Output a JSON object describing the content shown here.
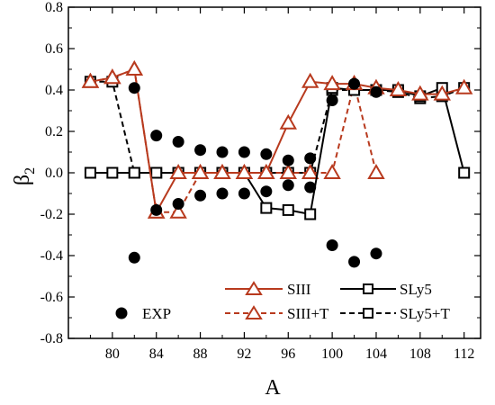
{
  "chart_data": {
    "type": "line",
    "xlabel": "A",
    "ylabel": "β",
    "ylabel_sub": "2",
    "xlim": [
      76,
      113.5
    ],
    "ylim": [
      -0.8,
      0.8
    ],
    "xticks": [
      80,
      84,
      88,
      92,
      96,
      100,
      104,
      108,
      112
    ],
    "xtick_labels": [
      "80",
      "84",
      "88",
      "92",
      "96",
      "100",
      "104",
      "108",
      "112"
    ],
    "yticks": [
      -0.8,
      -0.6,
      -0.4,
      -0.2,
      0.0,
      0.2,
      0.4,
      0.6,
      0.8
    ],
    "ytick_labels": [
      "-0.8",
      "-0.6",
      "-0.4",
      "-0.2",
      "0.0",
      "0.2",
      "0.4",
      "0.6",
      "0.8"
    ],
    "grid": false,
    "legend_position": "bottom",
    "series": [
      {
        "name": "SIII",
        "marker": "triangle",
        "line": "solid",
        "color": "#b83a1e",
        "points": [
          [
            78,
            0.44
          ],
          [
            80,
            0.46
          ],
          [
            82,
            0.5
          ],
          [
            84,
            -0.19
          ],
          [
            86,
            0.0
          ],
          [
            88,
            0.0
          ],
          [
            90,
            0.0
          ],
          [
            92,
            0.0
          ],
          [
            94,
            0.0
          ],
          [
            96,
            0.24
          ],
          [
            98,
            0.44
          ],
          [
            100,
            0.43
          ],
          [
            102,
            0.43
          ],
          [
            104,
            0.41
          ],
          [
            106,
            0.4
          ],
          [
            108,
            0.38
          ],
          [
            110,
            0.38
          ],
          [
            112,
            0.41
          ]
        ]
      },
      {
        "name": "SIII+T",
        "marker": "triangle",
        "line": "dashed",
        "color": "#b83a1e",
        "points": [
          [
            78,
            0.44
          ],
          [
            80,
            0.46
          ],
          [
            82,
            0.5
          ],
          [
            84,
            -0.19
          ],
          [
            86,
            -0.19
          ],
          [
            88,
            0.0
          ],
          [
            90,
            0.0
          ],
          [
            92,
            0.0
          ],
          [
            94,
            0.0
          ],
          [
            96,
            0.0
          ],
          [
            98,
            0.0
          ],
          [
            100,
            0.0
          ],
          [
            102,
            0.43
          ],
          [
            104,
            0.0
          ]
        ]
      },
      {
        "name": "SLy5",
        "marker": "square",
        "line": "solid",
        "color": "#000000",
        "points": [
          [
            78,
            0.0
          ],
          [
            80,
            0.0
          ],
          [
            82,
            0.0
          ],
          [
            84,
            0.0
          ],
          [
            86,
            0.0
          ],
          [
            88,
            0.0
          ],
          [
            90,
            0.0
          ],
          [
            92,
            0.0
          ],
          [
            94,
            -0.17
          ],
          [
            96,
            -0.18
          ],
          [
            98,
            -0.2
          ],
          [
            100,
            0.41
          ],
          [
            102,
            0.4
          ],
          [
            104,
            0.4
          ],
          [
            106,
            0.4
          ],
          [
            108,
            0.37
          ],
          [
            110,
            0.41
          ],
          [
            112,
            0.0
          ]
        ]
      },
      {
        "name": "SLy5+T",
        "marker": "square",
        "line": "dashed",
        "color": "#000000",
        "points": [
          [
            78,
            0.44
          ],
          [
            80,
            0.44
          ],
          [
            82,
            0.0
          ],
          [
            84,
            0.0
          ],
          [
            86,
            0.0
          ],
          [
            88,
            0.0
          ],
          [
            90,
            0.0
          ],
          [
            92,
            0.0
          ],
          [
            94,
            0.0
          ],
          [
            96,
            0.0
          ],
          [
            98,
            0.0
          ],
          [
            100,
            0.4
          ],
          [
            102,
            0.4
          ],
          [
            104,
            0.4
          ],
          [
            106,
            0.39
          ],
          [
            108,
            0.36
          ],
          [
            110,
            0.37
          ],
          [
            112,
            0.41
          ]
        ]
      },
      {
        "name": "EXP",
        "marker": "circle",
        "line": "none",
        "color": "#000000",
        "points": [
          [
            82,
            0.41
          ],
          [
            82,
            -0.41
          ],
          [
            84,
            0.18
          ],
          [
            84,
            -0.18
          ],
          [
            86,
            0.15
          ],
          [
            86,
            -0.15
          ],
          [
            88,
            0.11
          ],
          [
            88,
            -0.11
          ],
          [
            90,
            0.1
          ],
          [
            90,
            -0.1
          ],
          [
            92,
            0.1
          ],
          [
            92,
            -0.1
          ],
          [
            94,
            0.09
          ],
          [
            94,
            -0.09
          ],
          [
            96,
            0.06
          ],
          [
            96,
            -0.06
          ],
          [
            98,
            0.07
          ],
          [
            98,
            -0.07
          ],
          [
            100,
            0.35
          ],
          [
            100,
            -0.35
          ],
          [
            102,
            0.43
          ],
          [
            102,
            -0.43
          ],
          [
            104,
            0.39
          ],
          [
            104,
            -0.39
          ]
        ]
      }
    ]
  }
}
